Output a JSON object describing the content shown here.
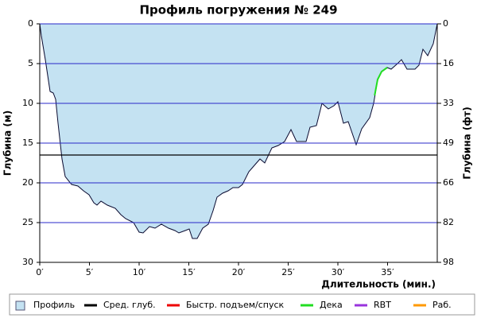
{
  "chart_data": {
    "type": "dive-profile",
    "title": "Профиль погружения № 249",
    "xlabel": "Длительность (мин.)",
    "ylabel": "Глубина (м)",
    "y2label": "Глубина (фт)",
    "xlim": [
      0,
      40
    ],
    "ylim": [
      0,
      30
    ],
    "y2lim": [
      0,
      98.4
    ],
    "y_inverted": true,
    "grid": true,
    "grid_color": "#2828c8",
    "xticks": [
      {
        "value": 0,
        "label": "0′"
      },
      {
        "value": 5,
        "label": "5′"
      },
      {
        "value": 10,
        "label": "10′"
      },
      {
        "value": 15,
        "label": "15′"
      },
      {
        "value": 20,
        "label": "20′"
      },
      {
        "value": 25,
        "label": "25′"
      },
      {
        "value": 30,
        "label": "30′"
      },
      {
        "value": 35,
        "label": "35′"
      }
    ],
    "yticks": [
      0,
      5,
      10,
      15,
      20,
      25,
      30
    ],
    "y2ticks": [
      0,
      {
        "value": 16.4,
        "label": "16"
      },
      {
        "value": 32.8,
        "label": "33"
      },
      {
        "value": 49.2,
        "label": "49"
      },
      {
        "value": 65.6,
        "label": "66"
      },
      {
        "value": 82.0,
        "label": "82"
      },
      {
        "value": 98.4,
        "label": "98"
      }
    ],
    "series": [
      {
        "name": "Профиль",
        "color": "#c4e2f2",
        "outline": "#0a0a30",
        "x": [
          0,
          0.16,
          0.56,
          1.04,
          1.36,
          1.6,
          1.84,
          2.24,
          2.56,
          3.2,
          3.84,
          4.4,
          4.96,
          5.44,
          5.76,
          6.16,
          6.8,
          7.6,
          8.16,
          8.64,
          9.44,
          10,
          10.4,
          11.04,
          11.6,
          12.24,
          12.96,
          13.6,
          14,
          14.64,
          15.04,
          15.36,
          15.84,
          16.4,
          16.96,
          17.44,
          17.84,
          18.4,
          18.96,
          19.44,
          20,
          20.4,
          21.04,
          21.6,
          22.16,
          22.64,
          23.36,
          24,
          24.64,
          25.28,
          25.84,
          26.8,
          27.2,
          27.84,
          28.4,
          29.04,
          29.6,
          30,
          30.56,
          31.04,
          31.84,
          32.4,
          33.2,
          33.6,
          34,
          34.4,
          34.96,
          35.36,
          36,
          36.4,
          36.96,
          37.76,
          38.16,
          38.56,
          39.04,
          39.6,
          40
        ],
        "values": [
          0,
          1.5,
          4.5,
          8.5,
          8.7,
          9.5,
          12.5,
          17,
          19.2,
          20.2,
          20.4,
          21,
          21.5,
          22.5,
          22.8,
          22.3,
          22.8,
          23.2,
          24,
          24.5,
          25,
          26.2,
          26.3,
          25.5,
          25.7,
          25.2,
          25.7,
          26,
          26.3,
          26,
          25.8,
          27,
          27,
          25.7,
          25.2,
          23.5,
          21.8,
          21.3,
          21,
          20.6,
          20.6,
          20.2,
          18.6,
          17.8,
          17,
          17.5,
          15.6,
          15.3,
          14.8,
          13.3,
          14.8,
          14.8,
          13,
          12.8,
          10,
          10.7,
          10.3,
          9.8,
          12.5,
          12.3,
          15.2,
          13.2,
          11.8,
          10,
          7,
          6,
          5.5,
          5.7,
          5,
          4.5,
          5.7,
          5.7,
          5.2,
          3.2,
          4,
          2.5,
          0
        ]
      },
      {
        "name": "Дека",
        "color": "#22dd22",
        "x": [
          33.7,
          34,
          34.4,
          34.96
        ],
        "values": [
          9,
          7,
          6,
          5.5
        ]
      }
    ],
    "mean_depth": {
      "name": "Сред. глуб.",
      "value": 16.5,
      "color": "#000000"
    },
    "legend_extra": [
      {
        "name": "Быстр. подъем/спуск",
        "color": "#ee0000"
      },
      {
        "name": "RBT",
        "color": "#9933dd"
      },
      {
        "name": "Раб.",
        "color": "#ff9900"
      }
    ]
  }
}
